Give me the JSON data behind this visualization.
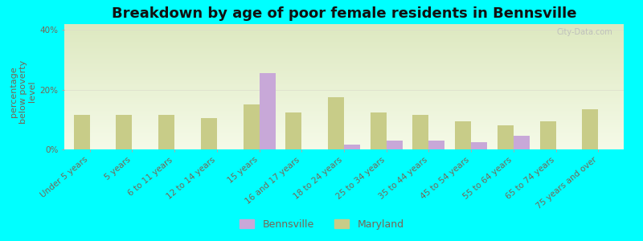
{
  "title": "Breakdown by age of poor female residents in Bennsville",
  "ylabel": "percentage\nbelow poverty\nlevel",
  "categories": [
    "Under 5 years",
    "5 years",
    "6 to 11 years",
    "12 to 14 years",
    "15 years",
    "16 and 17 years",
    "18 to 24 years",
    "25 to 34 years",
    "35 to 44 years",
    "45 to 54 years",
    "55 to 64 years",
    "65 to 74 years",
    "75 years and over"
  ],
  "bennsville": [
    0,
    0,
    0,
    0,
    25.5,
    0,
    1.5,
    3.0,
    3.0,
    2.5,
    4.5,
    0,
    0
  ],
  "maryland": [
    11.5,
    11.5,
    11.5,
    10.5,
    15.0,
    12.5,
    17.5,
    12.5,
    11.5,
    9.5,
    8.0,
    9.5,
    13.5
  ],
  "bennsville_color": "#c8a8d8",
  "maryland_color": "#c8cc88",
  "bg_color_top": "#dde8c0",
  "bg_color_bottom": "#f5fae8",
  "outer_bg": "#00ffff",
  "ylim": [
    0,
    42
  ],
  "yticks": [
    0,
    20,
    40
  ],
  "ytick_labels": [
    "0%",
    "20%",
    "40%"
  ],
  "title_fontsize": 13,
  "axis_label_fontsize": 8,
  "tick_fontsize": 7.5,
  "legend_fontsize": 9,
  "bar_width": 0.38,
  "watermark": "City-Data.com"
}
